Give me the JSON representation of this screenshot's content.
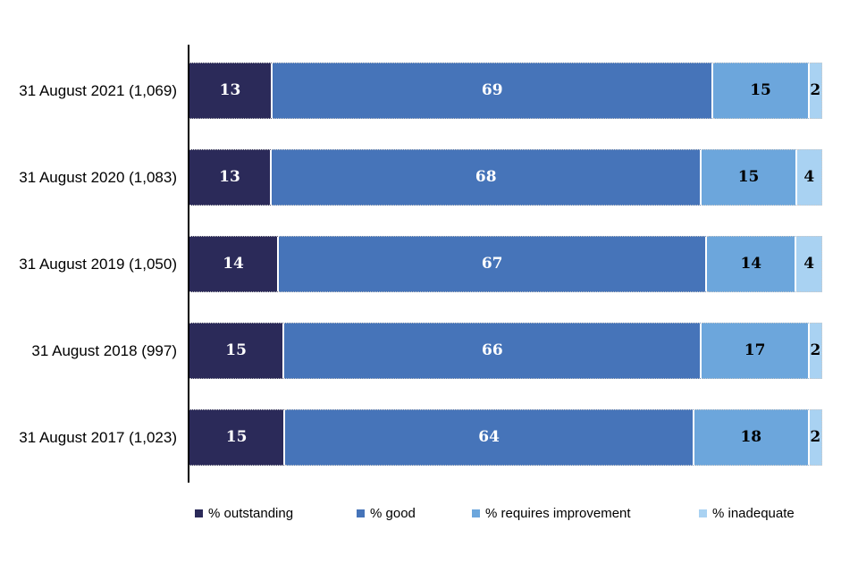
{
  "chart_data": {
    "type": "bar",
    "orientation": "horizontal",
    "stacked": true,
    "title": "",
    "xlabel": "",
    "ylabel": "",
    "grid": false,
    "legend_position": "bottom",
    "categories": [
      "31 August 2021 (1,069)",
      "31 August 2020 (1,083)",
      "31 August 2019 (1,050)",
      "31 August 2018 (997)",
      "31 August 2017 (1,023)"
    ],
    "series": [
      {
        "name": "% outstanding",
        "color": "#2B2A59",
        "value_text_color": "#ffffff",
        "values": [
          13,
          13,
          14,
          15,
          15
        ]
      },
      {
        "name": "% good",
        "color": "#4674B9",
        "value_text_color": "#ffffff",
        "values": [
          69,
          68,
          67,
          66,
          64
        ]
      },
      {
        "name": "% requires improvement",
        "color": "#6CA6DC",
        "value_text_color": "#000000",
        "values": [
          15,
          15,
          14,
          17,
          18
        ]
      },
      {
        "name": "% inadequate",
        "color": "#A9D2F2",
        "value_text_color": "#000000",
        "values": [
          2,
          4,
          4,
          2,
          2
        ]
      }
    ]
  }
}
